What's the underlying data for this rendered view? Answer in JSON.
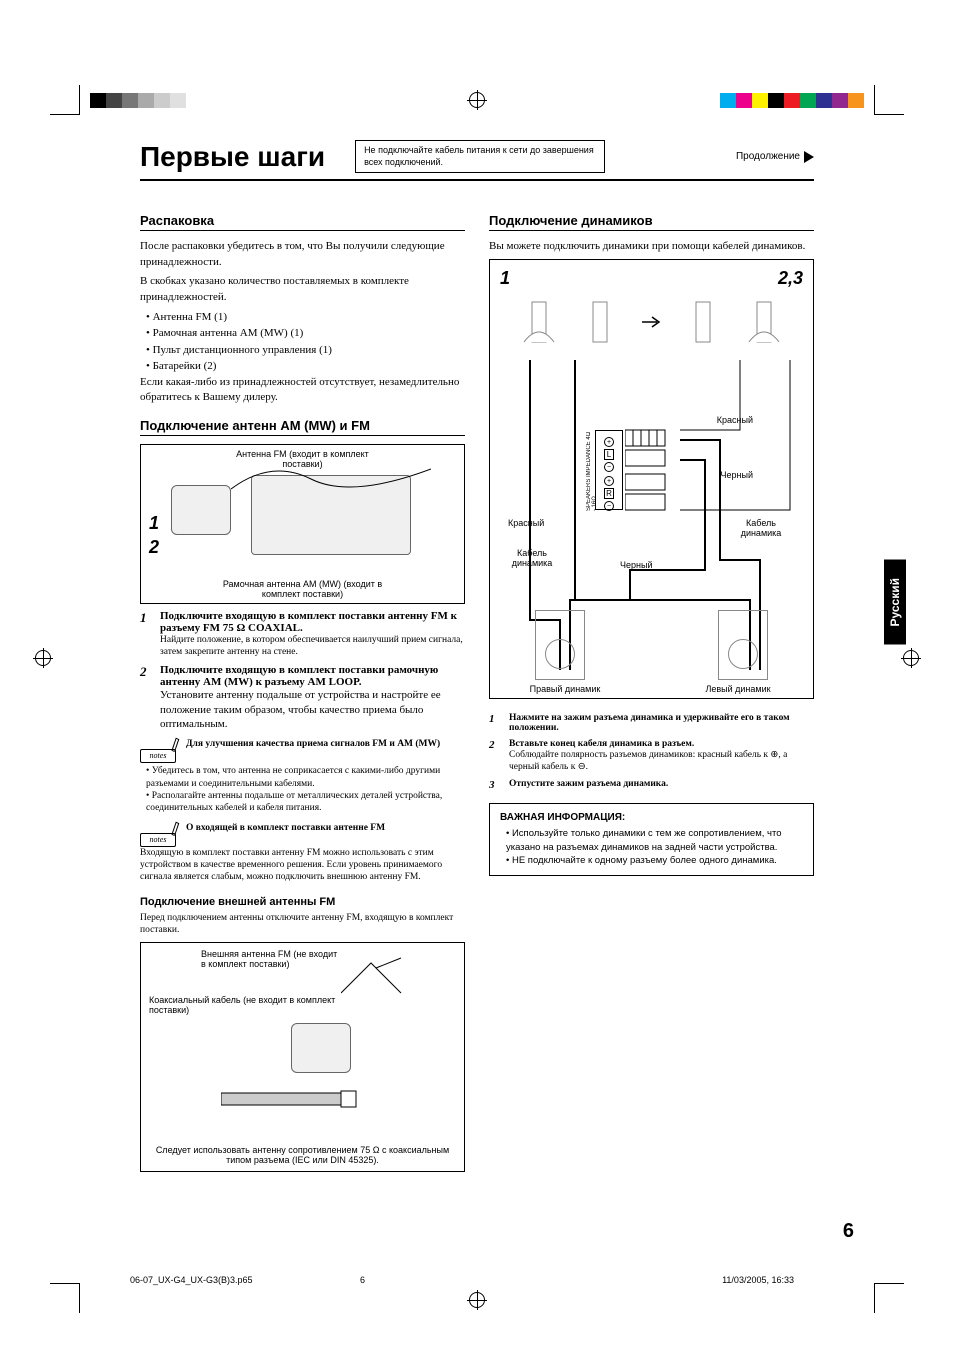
{
  "colorbar_left": [
    "#000000",
    "#444444",
    "#777777",
    "#aaaaaa",
    "#cccccc",
    "#e0e0e0",
    "#ffffff"
  ],
  "colorbar_right": [
    "#00aeef",
    "#ec008c",
    "#fff200",
    "#000000",
    "#ed1c24",
    "#00a651",
    "#2e3192",
    "#92278f",
    "#f7941d"
  ],
  "header": {
    "title": "Первые шаги",
    "warning": "Не подключайте кабель питания к сети до завершения всех подключений.",
    "continuation": "Продолжение"
  },
  "side_tab": "Русский",
  "page_number": "6",
  "footer": {
    "file": "06-07_UX-G4_UX-G3(B)3.p65",
    "page": "6",
    "date": "11/03/2005, 16:33"
  },
  "left": {
    "h1": "Распаковка",
    "p1": "После распаковки убедитесь в том, что Вы получили следующие принадлежности.",
    "p2": "В скобках указано количество поставляемых в комплекте принадлежностей.",
    "bullets": [
      "Антенна FM (1)",
      "Рамочная антенна AM (MW) (1)",
      "Пульт дистанционного управления (1)",
      "Батарейки (2)"
    ],
    "p3": "Если какая-либо из принадлежностей отсутствует, незамедлительно обратитесь к Вашему дилеру.",
    "h2": "Подключение антенн AM (MW) и FM",
    "diag1": {
      "top": "Антенна FM (входит в комплект поставки)",
      "bottom": "Рамочная антенна AM (MW) (входит в комплект поставки)",
      "n1": "1",
      "n2": "2"
    },
    "step1": {
      "num": "1",
      "title": "Подключите входящую в комплект поставки антенну FM к разъему FM 75 Ω COAXIAL.",
      "sub": "Найдите положение, в котором обеспечивается наилучший прием сигнала, затем закрепите антенну на стене."
    },
    "step2": {
      "num": "2",
      "title": "Подключите входящую в комплект поставки рамочную антенну AM (MW) к разъему AM LOOP.",
      "text": "Установите антенну подальше от устройства и настройте ее положение таким образом, чтобы качество приема было оптимальным."
    },
    "notes1": {
      "title": "Для улучшения качества приема сигналов FM и AM (MW)",
      "b1": "Убедитесь в том, что антенна не соприкасается с какими-либо другими разъемами и соединительными кабелями.",
      "b2": "Располагайте антенны подальше от металлических деталей устройства, соединительных кабелей и кабеля питания."
    },
    "notes2": {
      "title": "О входящей в комплект поставки антенне FM",
      "text": "Входящую в комплект поставки антенну FM можно использовать с этим устройством в качестве временного решения. Если уровень принимаемого сигнала является слабым, можно подключить внешнюю антенну FM."
    },
    "h3": "Подключение внешней антенны FM",
    "p4": "Перед подключением антенны отключите антенну FM, входящую в комплект поставки.",
    "diag3": {
      "ext": "Внешняя антенна FM (не входит в комплект поставки)",
      "coax": "Коаксиальный кабель (не входит в комплект поставки)",
      "bottom": "Следует использовать антенну сопротивлением 75 Ω с коаксиальным типом разъема (IEC или DIN 45325)."
    }
  },
  "right": {
    "h1": "Подключение динамиков",
    "p1": "Вы можете подключить динамики при помощи кабелей динамиков.",
    "diag": {
      "n1": "1",
      "n23": "2,3",
      "red": "Красный",
      "black": "Черный",
      "cable_l": "Кабель динамика",
      "cable_r": "Кабель динамика",
      "rspeaker": "Правый динамик",
      "lspeaker": "Левый динамик",
      "terminal": "SPEAKERS IMPEDANCE 4Ω - 16Ω",
      "L": "L",
      "R": "R"
    },
    "step1": {
      "num": "1",
      "title": "Нажмите на зажим разъема динамика и удерживайте его в таком положении."
    },
    "step2": {
      "num": "2",
      "title": "Вставьте конец кабеля динамика в разъем.",
      "text": "Соблюдайте полярность разъемов динамиков: красный кабель к ⊕, а черный кабель к ⊖."
    },
    "step3": {
      "num": "3",
      "title": "Отпустите зажим разъема динамика."
    },
    "info": {
      "title": "ВАЖНАЯ ИНФОРМАЦИЯ:",
      "b1": "Используйте только динамики с тем же сопротивлением, что указано на разъемах динамиков на задней части устройства.",
      "b2": "НЕ подключайте к одному разъему более одного динамика."
    }
  },
  "notes_label": "notes"
}
